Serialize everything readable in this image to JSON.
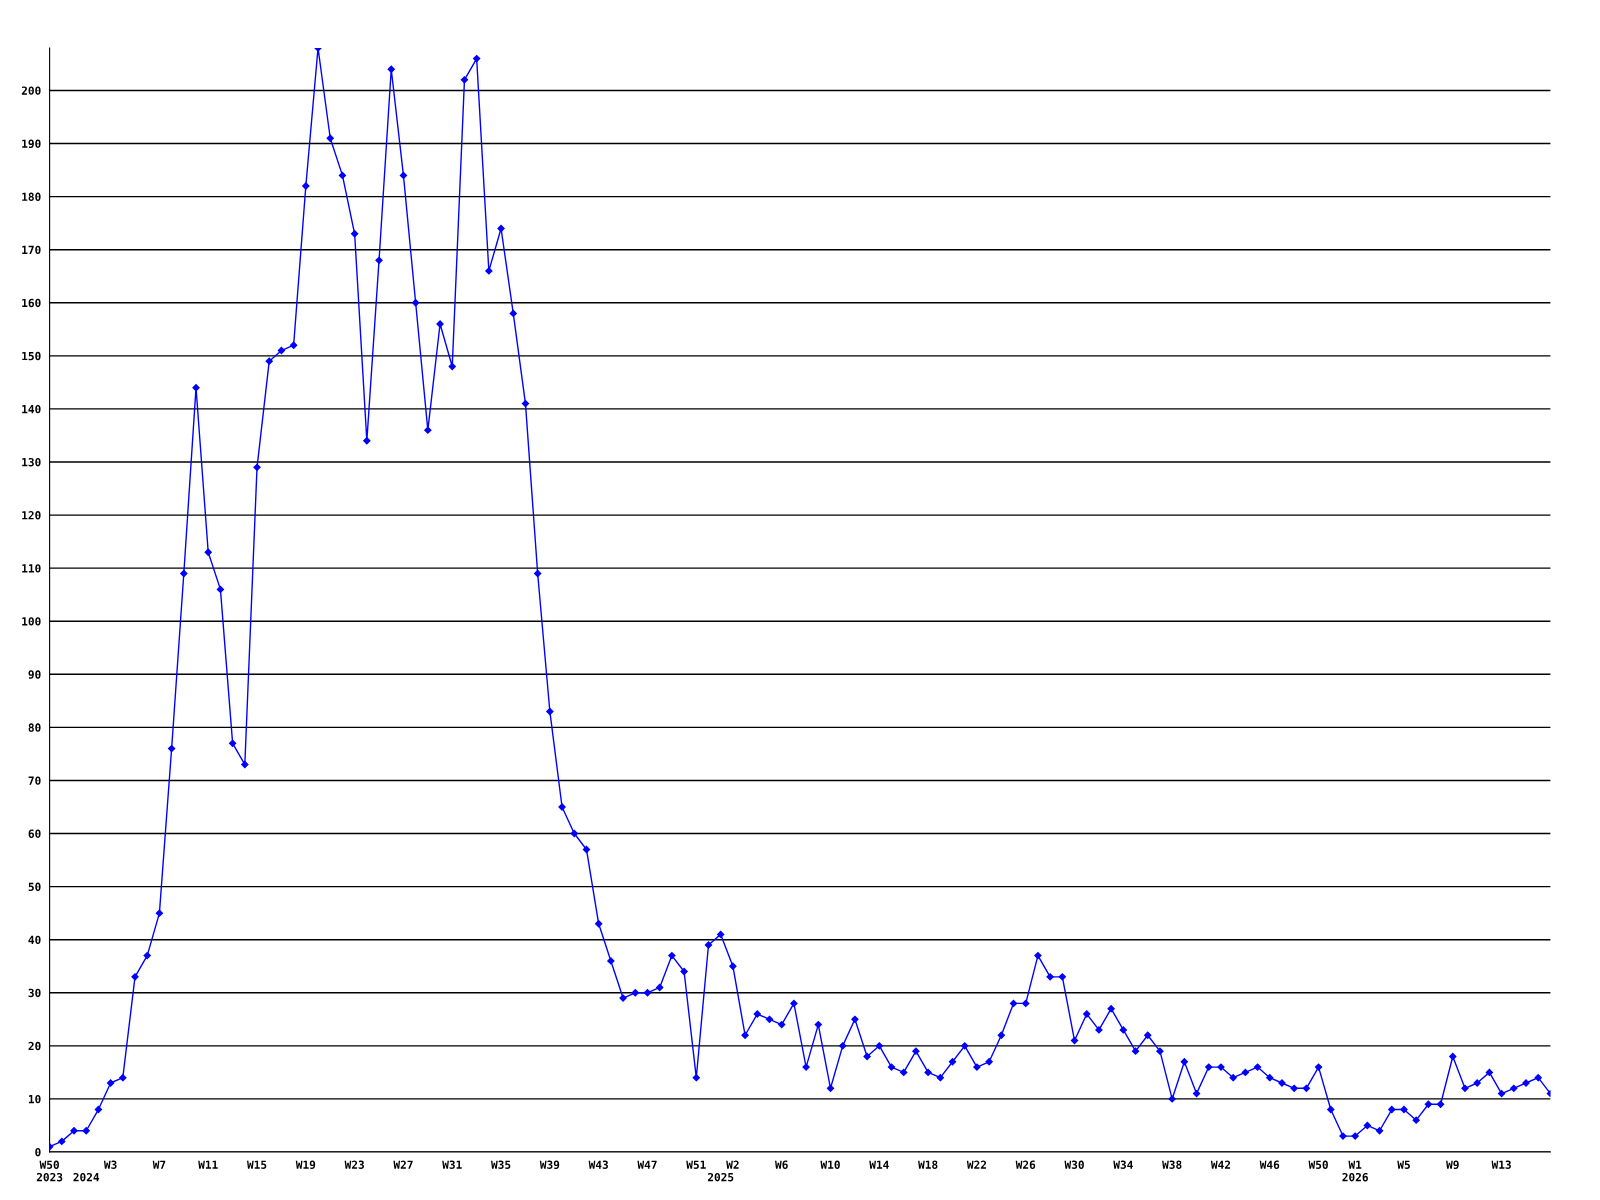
{
  "chart_data": {
    "type": "line",
    "categories": [
      "W50\n2023",
      null,
      null,
      "\n2024",
      null,
      "W3",
      null,
      null,
      null,
      "W7",
      null,
      null,
      null,
      "W11",
      null,
      null,
      null,
      "W15",
      null,
      null,
      null,
      "W19",
      null,
      null,
      null,
      "W23",
      null,
      null,
      null,
      "W27",
      null,
      null,
      null,
      "W31",
      null,
      null,
      null,
      "W35",
      null,
      null,
      null,
      "W39",
      null,
      null,
      null,
      "W43",
      null,
      null,
      null,
      "W47",
      null,
      null,
      null,
      "W51",
      null,
      "\n2025",
      "W2",
      null,
      null,
      null,
      "W6",
      null,
      null,
      null,
      "W10",
      null,
      null,
      null,
      "W14",
      null,
      null,
      null,
      "W18",
      null,
      null,
      null,
      "W22",
      null,
      null,
      null,
      "W26",
      null,
      null,
      null,
      "W30",
      null,
      null,
      null,
      "W34",
      null,
      null,
      null,
      "W38",
      null,
      null,
      null,
      "W42",
      null,
      null,
      null,
      "W46",
      null,
      null,
      null,
      "W50",
      null,
      null,
      "W1\n2026",
      null,
      null,
      null,
      "W5",
      null,
      null,
      null,
      "W9",
      null,
      null,
      null,
      "W13",
      null,
      null,
      null,
      null
    ],
    "series": [
      {
        "color": "#0000ff",
        "values": [
          1,
          2,
          4,
          4,
          8,
          13,
          14,
          33,
          37,
          45,
          76,
          109,
          144,
          113,
          106,
          77,
          73,
          129,
          149,
          151,
          152,
          182,
          208,
          191,
          184,
          173,
          134,
          168,
          204,
          184,
          160,
          136,
          156,
          148,
          202,
          206,
          166,
          174,
          158,
          141,
          109,
          83,
          65,
          60,
          57,
          43,
          36,
          29,
          30,
          30,
          31,
          37,
          34,
          14,
          39,
          41,
          35,
          22,
          26,
          25,
          24,
          28,
          16,
          24,
          12,
          20,
          25,
          18,
          20,
          16,
          15,
          19,
          15,
          14,
          17,
          20,
          16,
          17,
          22,
          28,
          28,
          37,
          33,
          33,
          21,
          26,
          23,
          27,
          23,
          19,
          22,
          19,
          10,
          17,
          11,
          16,
          16,
          14,
          15,
          16,
          14,
          13,
          12,
          12,
          16,
          8,
          3,
          3,
          5,
          4,
          8,
          8,
          6,
          9,
          9,
          18,
          12,
          13,
          15,
          11,
          12,
          13,
          14,
          11
        ]
      }
    ],
    "ylim": [
      0,
      208
    ],
    "yticks": [
      0,
      10,
      20,
      30,
      40,
      50,
      60,
      70,
      80,
      90,
      100,
      110,
      120,
      130,
      140,
      150,
      160,
      170,
      180,
      190,
      200
    ],
    "grid": "y",
    "marker": "diamond",
    "line_style": "solid"
  }
}
